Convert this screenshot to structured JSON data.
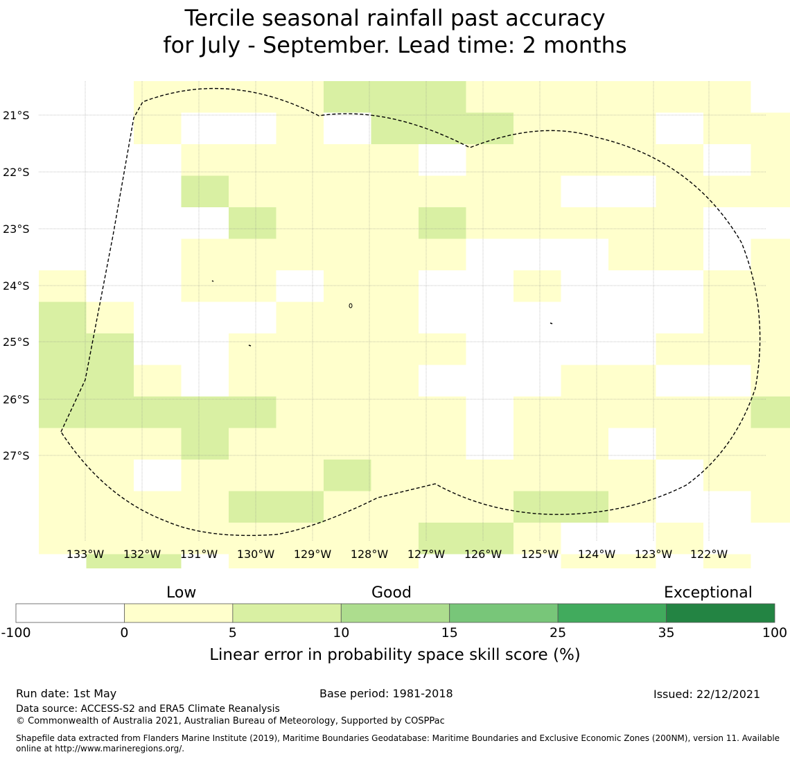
{
  "title": {
    "line1": "Tercile seasonal rainfall past accuracy",
    "line2": "for July - September. Lead time: 2 months"
  },
  "map": {
    "lat_labels": [
      "21°S",
      "22°S",
      "23°S",
      "24°S",
      "25°S",
      "26°S",
      "27°S"
    ],
    "lon_labels": [
      "133°W",
      "132°W",
      "131°W",
      "130°W",
      "129°W",
      "128°W",
      "127°W",
      "126°W",
      "125°W",
      "124°W",
      "123°W",
      "122°W"
    ],
    "class_colors": [
      "#ffffff",
      "#ffffcc",
      "#d9f0a3",
      "#addd8e",
      "#78c679",
      "#41ab5d",
      "#238443"
    ],
    "grid_classes": [
      "xx1111222111111xxxx",
      "xx1xx1x222111x111xx",
      "xxx11111x11111x1111",
      "xxx21111111xx1111x1",
      "xxxx2111211111xx111",
      "xxx111111xxx11x1x11",
      "1xx11x11xx1xxx11112",
      "21xxx111xxxxxx11122",
      "22xx11111xxxx1111111",
      "221x1111xxx11xx1xx1",
      "222221111x11111222",
      "111211111x11x11121",
      "11x1112111111x11112",
      "1111221111221xx1111",
      "11111111221xx1xx1xx",
      "x22x1111xxx11x1xx1x"
    ]
  },
  "colorbar": {
    "category_labels": [
      "Low",
      "Good",
      "Exceptional"
    ],
    "ticks": [
      "-100",
      "0",
      "5",
      "10",
      "15",
      "25",
      "35",
      "100"
    ],
    "colors": [
      "#ffffff",
      "#ffffcc",
      "#d9f0a3",
      "#addd8e",
      "#78c679",
      "#41ab5d",
      "#238443"
    ],
    "label": "Linear error in probability space skill score (%)"
  },
  "footer": {
    "run_date": "Run date: 1st May",
    "base_period": "Base period: 1981-2018",
    "issued": "Issued: 22/12/2021",
    "data_source": "Data source: ACCESS-S2 and ERA5 Climate Reanalysis",
    "copyright": "© Commonwealth of Australia 2021, Australian Bureau of Meteorology, Supported by COSPPac",
    "shapefile": "Shapefile data extracted from Flanders Marine Institute (2019), Maritime Boundaries Geodatabase: Maritime Boundaries and Exclusive Economic Zones (200NM), version 11. Available online at http://www.marineregions.org/."
  }
}
